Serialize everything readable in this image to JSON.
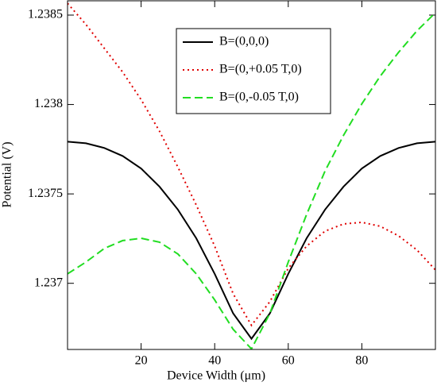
{
  "chart_data": {
    "type": "line",
    "xlabel": "Device Width (μm)",
    "ylabel": "Potential (V)",
    "x": [
      0,
      5,
      10,
      15,
      20,
      25,
      30,
      35,
      40,
      45,
      50,
      55,
      60,
      65,
      70,
      75,
      80,
      85,
      90,
      95,
      100
    ],
    "xlim": [
      0,
      100
    ],
    "xticks": [
      20,
      40,
      60,
      80
    ],
    "ylim": [
      1.23663,
      1.23858
    ],
    "yticks": [
      1.237,
      1.2375,
      1.238,
      1.2385
    ],
    "legend": "upper-center",
    "series": [
      {
        "name": "B=(0,0,0)",
        "color": "#000000",
        "dash": "solid",
        "values": [
          1.237792,
          1.237783,
          1.237757,
          1.237712,
          1.237642,
          1.23754,
          1.237412,
          1.237252,
          1.237053,
          1.236832,
          1.23669,
          1.236832,
          1.237053,
          1.237252,
          1.237412,
          1.23754,
          1.237642,
          1.237712,
          1.237757,
          1.237783,
          1.237792
        ]
      },
      {
        "name": "B=(0,+0.05 T,0)",
        "color": "#e00000",
        "dash": "dotted",
        "values": [
          1.238566,
          1.238447,
          1.238314,
          1.238181,
          1.238027,
          1.23785,
          1.23765,
          1.237438,
          1.237208,
          1.236942,
          1.236765,
          1.236898,
          1.237084,
          1.237208,
          1.237292,
          1.237332,
          1.237341,
          1.237319,
          1.237265,
          1.237186,
          1.237075
        ]
      },
      {
        "name": "B=(0,-0.05 T,0)",
        "color": "#22dd22",
        "dash": "dashed",
        "values": [
          1.237053,
          1.237119,
          1.237195,
          1.237239,
          1.237252,
          1.23723,
          1.237164,
          1.237053,
          1.236907,
          1.236743,
          1.236633,
          1.236832,
          1.237119,
          1.237385,
          1.237628,
          1.237827,
          1.238004,
          1.238159,
          1.238292,
          1.238412,
          1.238513
        ]
      }
    ]
  }
}
